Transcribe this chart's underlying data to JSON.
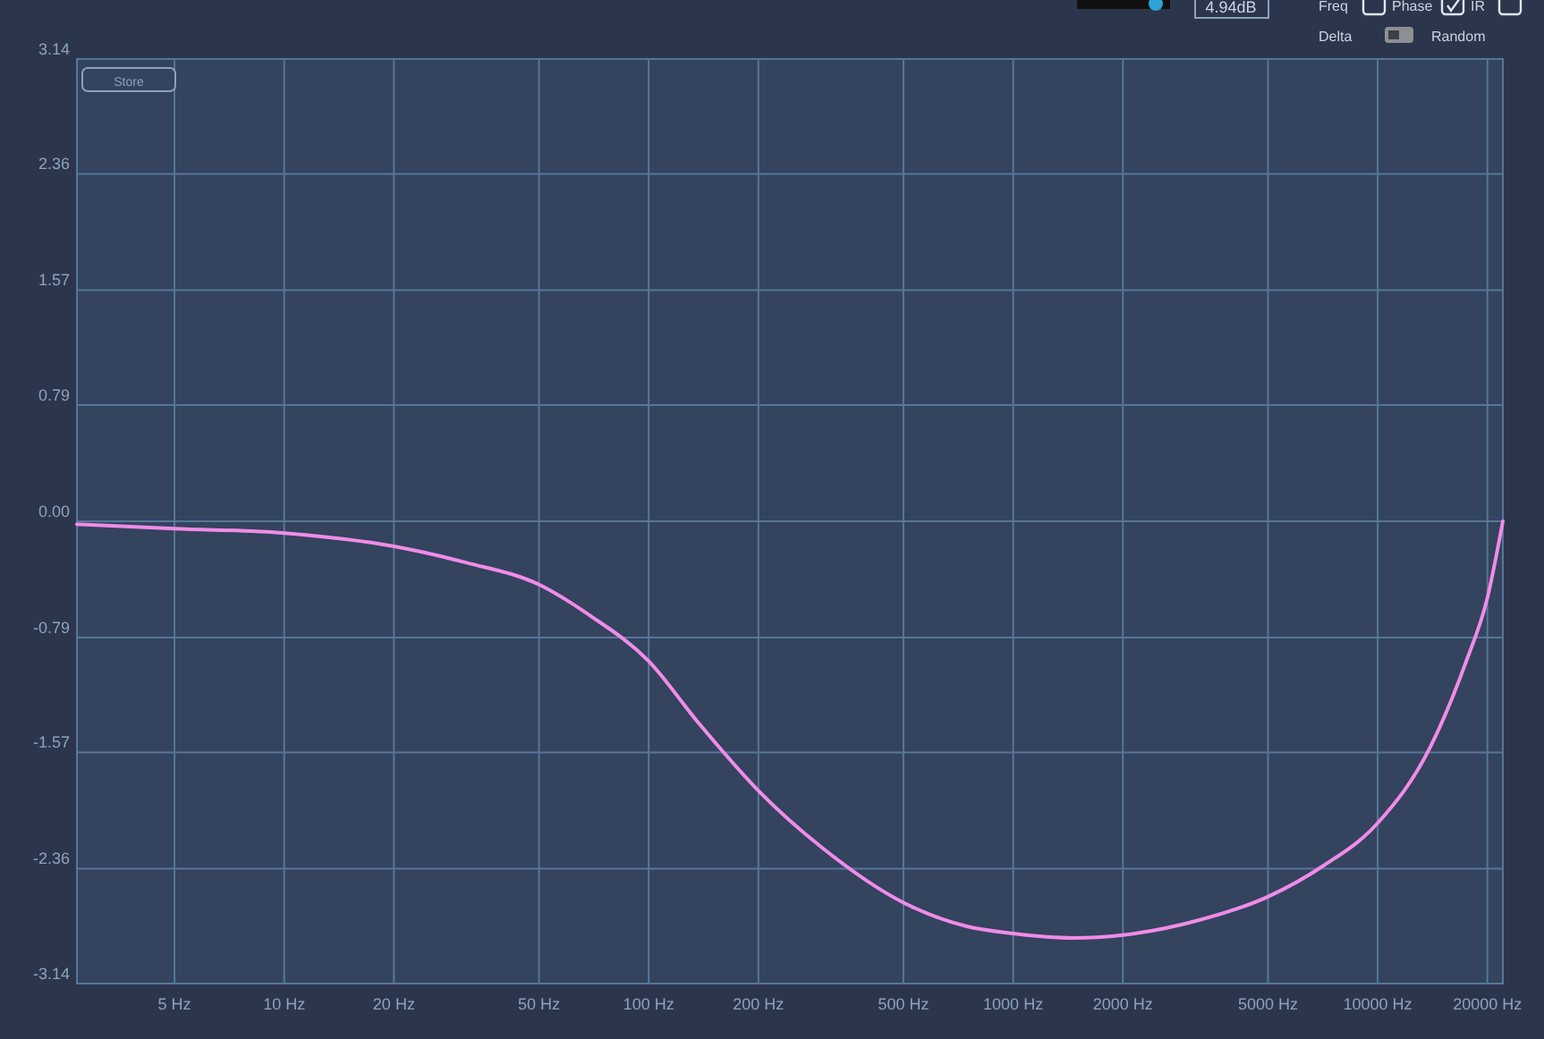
{
  "chart_data": {
    "type": "line",
    "log": "x",
    "grid": true,
    "marker": "none",
    "line_style": "solid",
    "xlim": [
      2.7,
      22050
    ],
    "xticks": [
      {
        "value": 5,
        "label": "5 Hz"
      },
      {
        "value": 10,
        "label": "10 Hz"
      },
      {
        "value": 20,
        "label": "20 Hz"
      },
      {
        "value": 50,
        "label": "50 Hz"
      },
      {
        "value": 100,
        "label": "100 Hz"
      },
      {
        "value": 200,
        "label": "200 Hz"
      },
      {
        "value": 500,
        "label": "500 Hz"
      },
      {
        "value": 1000,
        "label": "1000 Hz"
      },
      {
        "value": 2000,
        "label": "2000 Hz"
      },
      {
        "value": 5000,
        "label": "5000 Hz"
      },
      {
        "value": 10000,
        "label": "10000 Hz"
      },
      {
        "value": 20000,
        "label": "20000 Hz"
      }
    ],
    "ylim": [
      -3.14,
      3.14
    ],
    "yticks": [
      3.14,
      2.36,
      1.57,
      0.79,
      {
        "value": 0,
        "label": "0.00"
      },
      -0.79,
      -1.57,
      -2.36,
      -3.14
    ],
    "annotations": [
      "Store",
      "4.94dB",
      "Freq",
      "Phase",
      "IR",
      "Delta",
      "Random"
    ],
    "series": [
      {
        "color": "#f08ce8",
        "x": [
          2.7,
          5,
          10,
          20,
          31.5,
          50,
          69,
          100,
          137,
          200,
          300,
          500,
          742,
          1000,
          1462,
          2000,
          3222,
          5000,
          7095,
          10000,
          13965,
          17500,
          20000,
          22050
        ],
        "values": [
          -0.02,
          -0.05,
          -0.08,
          -0.17,
          -0.28,
          -0.43,
          -0.64,
          -0.95,
          -1.37,
          -1.83,
          -2.22,
          -2.59,
          -2.75,
          -2.8,
          -2.83,
          -2.81,
          -2.71,
          -2.55,
          -2.34,
          -2.05,
          -1.53,
          -0.95,
          -0.52,
          0
        ]
      }
    ]
  }
}
